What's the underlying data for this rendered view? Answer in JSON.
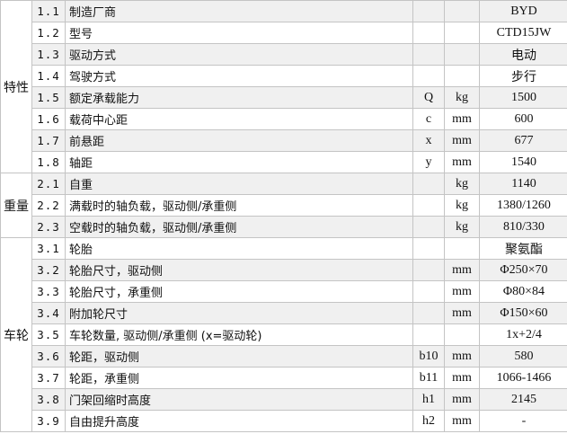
{
  "sections": [
    {
      "label": "特性",
      "rows": [
        {
          "no": "1.1",
          "name": "制造厂商",
          "sym": "",
          "unit": "",
          "val": "BYD"
        },
        {
          "no": "1.2",
          "name": "型号",
          "sym": "",
          "unit": "",
          "val": "CTD15JW"
        },
        {
          "no": "1.3",
          "name": "驱动方式",
          "sym": "",
          "unit": "",
          "val": "电动"
        },
        {
          "no": "1.4",
          "name": "驾驶方式",
          "sym": "",
          "unit": "",
          "val": "步行"
        },
        {
          "no": "1.5",
          "name": "额定承载能力",
          "sym": "Q",
          "unit": "kg",
          "val": "1500"
        },
        {
          "no": "1.6",
          "name": "载荷中心距",
          "sym": "c",
          "unit": "mm",
          "val": "600"
        },
        {
          "no": "1.7",
          "name": "前悬距",
          "sym": "x",
          "unit": "mm",
          "val": "677"
        },
        {
          "no": "1.8",
          "name": "轴距",
          "sym": "y",
          "unit": "mm",
          "val": "1540"
        }
      ]
    },
    {
      "label": "重量",
      "rows": [
        {
          "no": "2.1",
          "name": "自重",
          "sym": "",
          "unit": "kg",
          "val": "1140"
        },
        {
          "no": "2.2",
          "name": "满载时的轴负载，驱动侧/承重侧",
          "sym": "",
          "unit": "kg",
          "val": "1380/1260"
        },
        {
          "no": "2.3",
          "name": "空载时的轴负载，驱动侧/承重侧",
          "sym": "",
          "unit": "kg",
          "val": "810/330"
        }
      ]
    },
    {
      "label": "车轮",
      "rows": [
        {
          "no": "3.1",
          "name": "轮胎",
          "sym": "",
          "unit": "",
          "val": "聚氨酯"
        },
        {
          "no": "3.2",
          "name": "轮胎尺寸，驱动侧",
          "sym": "",
          "unit": "mm",
          "val": "Φ250×70"
        },
        {
          "no": "3.3",
          "name": "轮胎尺寸，承重侧",
          "sym": "",
          "unit": "mm",
          "val": "Φ80×84"
        },
        {
          "no": "3.4",
          "name": "附加轮尺寸",
          "sym": "",
          "unit": "mm",
          "val": "Φ150×60"
        },
        {
          "no": "3.5",
          "name": "车轮数量, 驱动侧/承重侧 (x=驱动轮)",
          "sym": "",
          "unit": "",
          "val": "1x+2/4"
        },
        {
          "no": "3.6",
          "name": "轮距，驱动侧",
          "sym": "b10",
          "unit": "mm",
          "val": "580"
        },
        {
          "no": "3.7",
          "name": "轮距，承重侧",
          "sym": "b11",
          "unit": "mm",
          "val": "1066-1466"
        },
        {
          "no": "3.8",
          "name": "门架回缩时高度",
          "sym": "h1",
          "unit": "mm",
          "val": "2145"
        },
        {
          "no": "3.9",
          "name": "自由提升高度",
          "sym": "h2",
          "unit": "mm",
          "val": "-"
        }
      ]
    }
  ]
}
